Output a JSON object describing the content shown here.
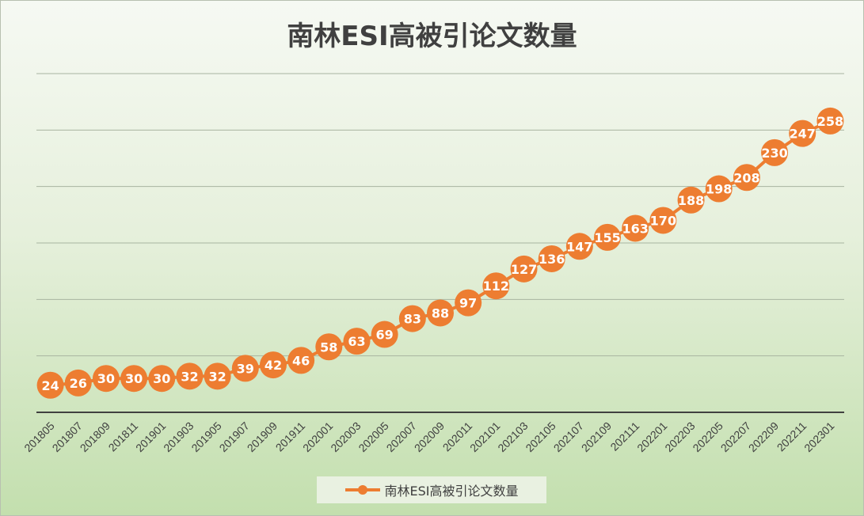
{
  "chart_data": {
    "type": "line",
    "title": "南林ESI高被引论文数量",
    "xlabel": "",
    "ylabel": "",
    "ylim": [
      0,
      300
    ],
    "grid": true,
    "legend_position": "bottom",
    "colors": {
      "series": "#ed7d31",
      "grid": "#a8b4a0",
      "axis": "#404040",
      "label_text": "#ffffff"
    },
    "categories": [
      "201805",
      "201807",
      "201809",
      "201811",
      "201901",
      "201903",
      "201905",
      "201907",
      "201909",
      "201911",
      "202001",
      "202003",
      "202005",
      "202007",
      "202009",
      "202011",
      "202101",
      "202103",
      "202105",
      "202107",
      "202109",
      "202111",
      "202201",
      "202203",
      "202205",
      "202207",
      "202209",
      "202211",
      "202301"
    ],
    "series": [
      {
        "name": "南林ESI高被引论文数量",
        "values": [
          24,
          26,
          30,
          30,
          30,
          32,
          32,
          39,
          42,
          46,
          58,
          63,
          69,
          83,
          88,
          97,
          112,
          127,
          136,
          147,
          155,
          163,
          170,
          188,
          198,
          208,
          230,
          247,
          258
        ]
      }
    ]
  }
}
